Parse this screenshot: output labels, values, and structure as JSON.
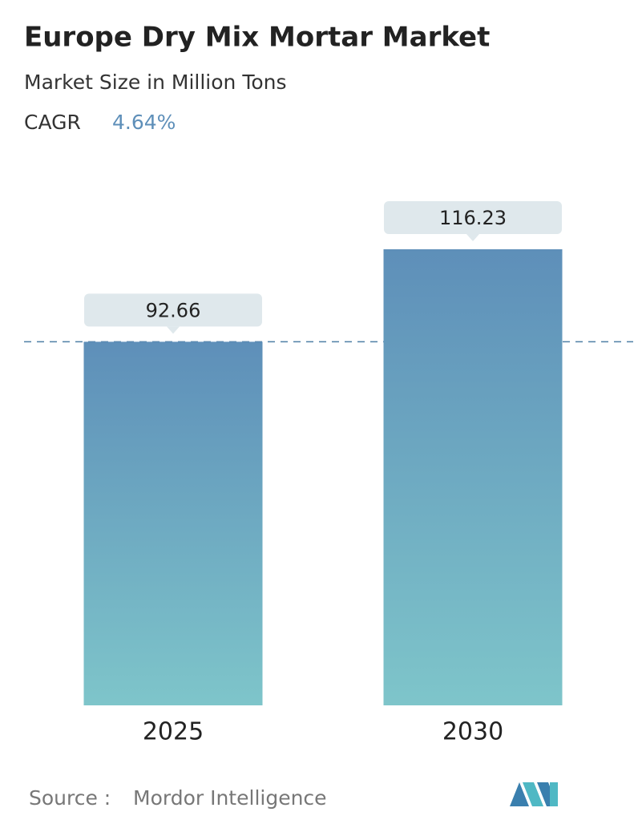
{
  "chart_data": {
    "type": "bar",
    "title": "Europe Dry Mix Mortar Market",
    "subtitle": "Market Size in Million Tons",
    "cagr_label": "CAGR",
    "cagr_value": "4.64%",
    "categories": [
      "2025",
      "2030"
    ],
    "values": [
      92.66,
      116.23
    ],
    "color_top": "#5e8fb9",
    "color_bottom": "#7ec5ca",
    "reference_line": true,
    "source_label": "Source :",
    "source": "Mordor Intelligence"
  }
}
